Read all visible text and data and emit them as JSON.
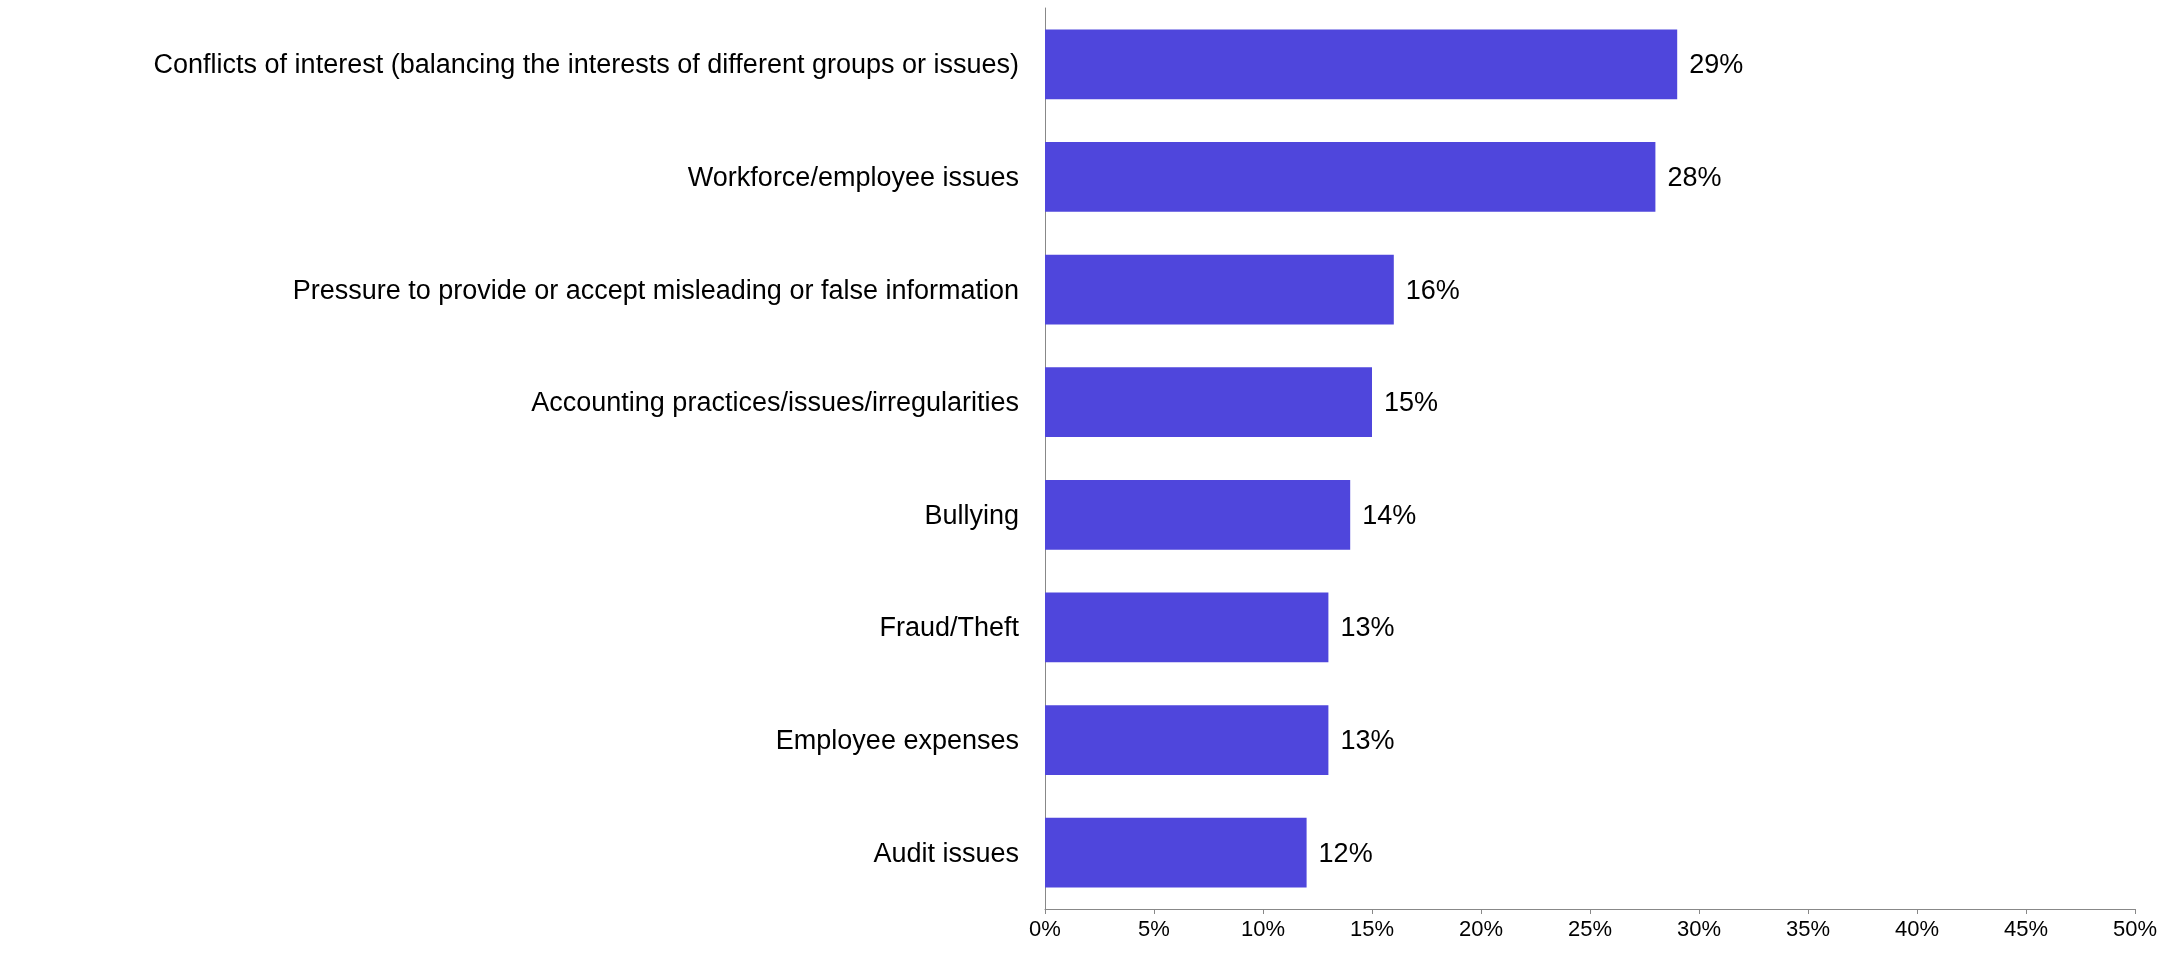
{
  "chart_data": {
    "type": "bar",
    "orientation": "horizontal",
    "categories": [
      "Conflicts of interest (balancing the interests of different groups or issues)",
      "Workforce/employee issues",
      "Pressure to provide or accept misleading or false information",
      "Accounting practices/issues/irregularities",
      "Bullying",
      "Fraud/Theft",
      "Employee expenses",
      "Audit issues"
    ],
    "values": [
      29,
      28,
      16,
      15,
      14,
      13,
      13,
      12
    ],
    "value_labels": [
      "29%",
      "28%",
      "16%",
      "15%",
      "14%",
      "13%",
      "13%",
      "12%"
    ],
    "color": "#4f46dc",
    "xlim": [
      0,
      50
    ],
    "xticks": [
      {
        "value": 0,
        "label": "0%"
      },
      {
        "value": 5,
        "label": "5%"
      },
      {
        "value": 10,
        "label": "10%"
      },
      {
        "value": 15,
        "label": "15%"
      },
      {
        "value": 20,
        "label": "20%"
      },
      {
        "value": 25,
        "label": "25%"
      },
      {
        "value": 30,
        "label": "30%"
      },
      {
        "value": 35,
        "label": "35%"
      },
      {
        "value": 40,
        "label": "40%"
      },
      {
        "value": 45,
        "label": "45%"
      },
      {
        "value": 50,
        "label": "50%"
      }
    ],
    "grid": false
  }
}
